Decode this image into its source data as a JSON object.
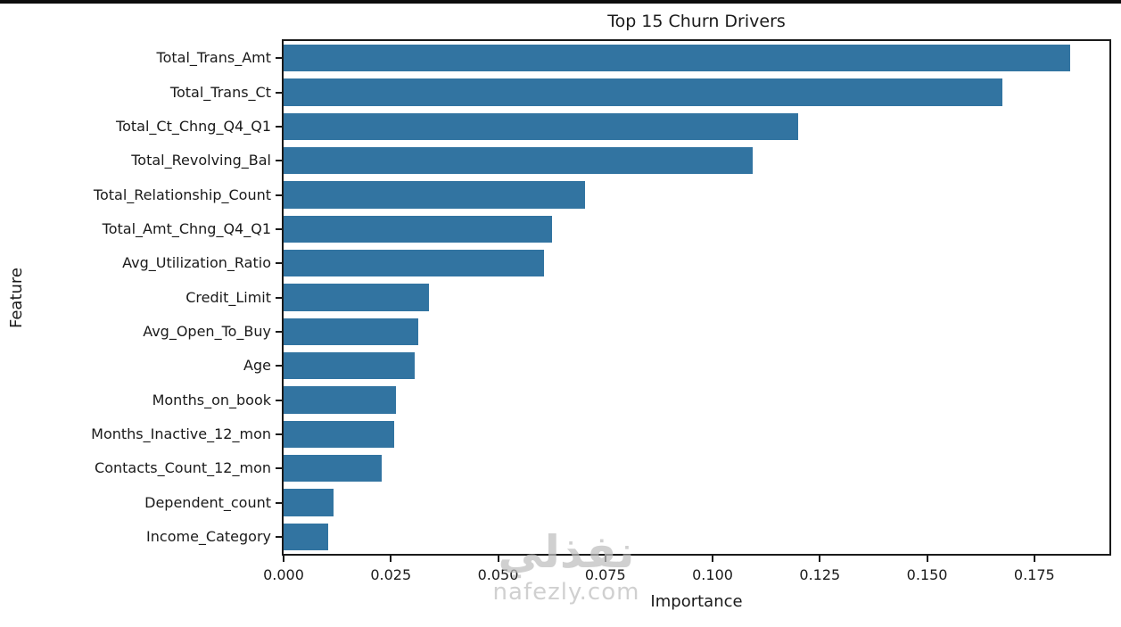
{
  "page": {
    "background": "#ffffff",
    "letterbox_color": "#0d0d0d"
  },
  "chart_data": {
    "type": "bar",
    "orientation": "horizontal",
    "title": "Top 15 Churn Drivers",
    "xlabel": "Importance",
    "ylabel": "Feature",
    "categories": [
      "Total_Trans_Amt",
      "Total_Trans_Ct",
      "Total_Ct_Chng_Q4_Q1",
      "Total_Revolving_Bal",
      "Total_Relationship_Count",
      "Total_Amt_Chng_Q4_Q1",
      "Avg_Utilization_Ratio",
      "Credit_Limit",
      "Avg_Open_To_Buy",
      "Age",
      "Months_on_book",
      "Months_Inactive_12_mon",
      "Contacts_Count_12_mon",
      "Dependent_count",
      "Income_Category"
    ],
    "values": [
      0.1834,
      0.1676,
      0.1199,
      0.1093,
      0.0703,
      0.0625,
      0.0606,
      0.0338,
      0.0313,
      0.0306,
      0.0261,
      0.0257,
      0.0228,
      0.0116,
      0.0104
    ],
    "xlim": [
      0,
      0.1925
    ],
    "xticks": [
      0,
      0.025,
      0.05,
      0.075,
      0.1,
      0.125,
      0.15,
      0.175
    ],
    "xtick_labels": [
      "0.000",
      "0.025",
      "0.050",
      "0.075",
      "0.100",
      "0.125",
      "0.150",
      "0.175"
    ],
    "bar_color": "#3274a1",
    "axis_color": "#1a1a1a",
    "grid": false,
    "legend": null
  },
  "watermark": {
    "logo_text": "نفذلي",
    "site_text": "nafezly.com"
  }
}
